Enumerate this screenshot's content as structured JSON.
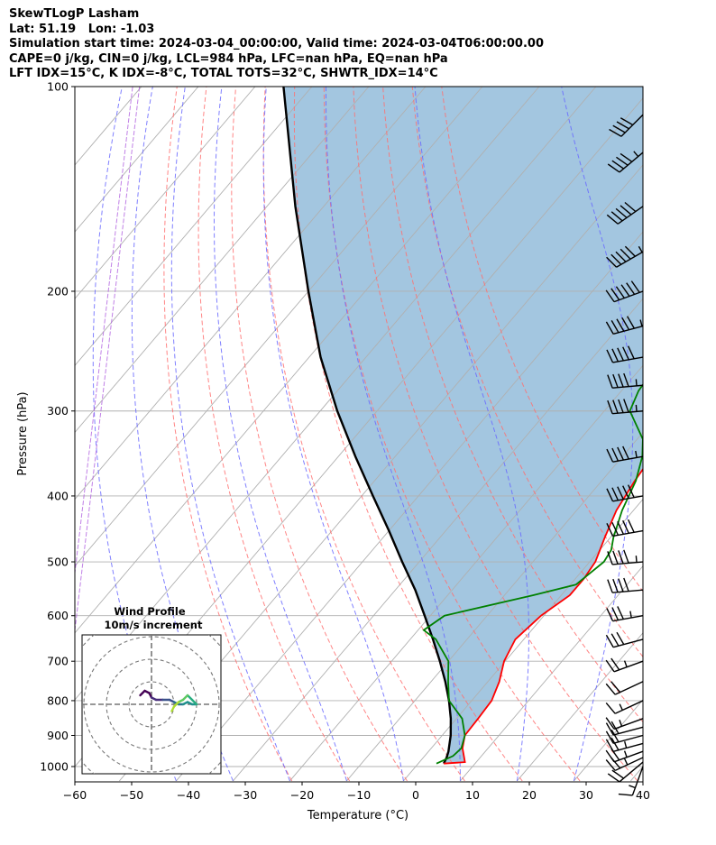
{
  "header": {
    "lines": [
      "SkewTLogP Lasham",
      "Lat: 51.19   Lon: -1.03",
      "Simulation start time: 2024-03-04_00:00:00, Valid time: 2024-03-04T06:00:00.00",
      "CAPE=0 j/kg, CIN=0 j/kg, LCL=984 hPa, LFC=nan hPa, EQ=nan hPa",
      "LFT IDX=15°C, K IDX=-8°C, TOTAL TOTS=32°C, SHWTR_IDX=14°C"
    ]
  },
  "chart_data": {
    "type": "skew-t",
    "xlabel": "Temperature (°C)",
    "ylabel": "Pressure (hPa)",
    "xlim": [
      -60,
      40
    ],
    "ylim": [
      1050,
      100
    ],
    "pressure_scale": "log",
    "xticks": [
      -60,
      -50,
      -40,
      -30,
      -20,
      -10,
      0,
      10,
      20,
      30,
      40
    ],
    "yticks": [
      1000,
      900,
      800,
      700,
      600,
      500,
      400,
      300,
      200,
      100
    ],
    "grid": true,
    "temperature": {
      "color": "#ff0000",
      "points": [
        [
          990,
          4.5
        ],
        [
          985,
          8
        ],
        [
          940,
          5.5
        ],
        [
          900,
          4
        ],
        [
          850,
          3.8
        ],
        [
          800,
          3.5
        ],
        [
          750,
          2
        ],
        [
          700,
          -0.2
        ],
        [
          650,
          -1.5
        ],
        [
          600,
          -0.5
        ],
        [
          560,
          1.5
        ],
        [
          530,
          1.5
        ],
        [
          500,
          1
        ],
        [
          460,
          -1
        ],
        [
          420,
          -3
        ],
        [
          380,
          -4.2
        ],
        [
          350,
          -4.8
        ],
        [
          330,
          -5.5
        ],
        [
          300,
          -7
        ],
        [
          270,
          -7.5
        ],
        [
          245,
          -7.5
        ],
        [
          222,
          -6.5
        ],
        [
          205,
          -5
        ],
        [
          185,
          -2
        ],
        [
          165,
          1
        ],
        [
          150,
          3
        ],
        [
          130,
          7
        ],
        [
          115,
          8.5
        ],
        [
          100,
          10
        ]
      ]
    },
    "dewpoint": {
      "color": "#008000",
      "points": [
        [
          990,
          3.2
        ],
        [
          965,
          5
        ],
        [
          940,
          5.3
        ],
        [
          900,
          4
        ],
        [
          850,
          1
        ],
        [
          800,
          -4
        ],
        [
          750,
          -7
        ],
        [
          700,
          -10
        ],
        [
          650,
          -15.5
        ],
        [
          630,
          -19
        ],
        [
          600,
          -17.5
        ],
        [
          560,
          -5
        ],
        [
          540,
          1
        ],
        [
          500,
          2.5
        ],
        [
          480,
          2
        ],
        [
          460,
          0.5
        ],
        [
          420,
          -2
        ],
        [
          380,
          -4
        ],
        [
          350,
          -6.5
        ],
        [
          330,
          -9
        ],
        [
          300,
          -15.5
        ],
        [
          280,
          -17
        ],
        [
          260,
          -17.5
        ],
        [
          240,
          -19
        ],
        [
          220,
          -21.5
        ],
        [
          205,
          -23
        ],
        [
          190,
          -24
        ],
        [
          170,
          -28
        ],
        [
          160,
          -30.5
        ],
        [
          150,
          -32.5
        ],
        [
          135,
          -33.5
        ],
        [
          115,
          -33
        ],
        [
          100,
          -32
        ]
      ]
    },
    "parcel": {
      "color": "#000000",
      "points": [
        [
          990,
          4.5
        ],
        [
          970,
          4.1
        ],
        [
          950,
          3.5
        ],
        [
          900,
          1.5
        ],
        [
          850,
          -1
        ],
        [
          800,
          -4
        ],
        [
          750,
          -7.5
        ],
        [
          700,
          -11.5
        ],
        [
          650,
          -16
        ],
        [
          600,
          -21
        ],
        [
          550,
          -26.5
        ],
        [
          500,
          -33
        ],
        [
          450,
          -40
        ],
        [
          400,
          -48
        ],
        [
          350,
          -57
        ],
        [
          300,
          -67
        ],
        [
          250,
          -78
        ],
        [
          200,
          -90
        ],
        [
          150,
          -105
        ],
        [
          100,
          -125
        ]
      ]
    },
    "cin_shading": {
      "color": "#a3c6e0",
      "between": [
        "temperature",
        "parcel"
      ]
    },
    "reference_lines": {
      "isotherms_color": "#b0b0b0",
      "dry_adiabats_color": "#ff7070",
      "moist_adiabats_color": "#6a6aff",
      "mixing_ratio_color": "#b060e0",
      "isotherm_temps": [
        -150,
        -140,
        -130,
        -120,
        -110,
        -100,
        -90,
        -80,
        -70,
        -60,
        -50,
        -40,
        -30,
        -20,
        -10,
        0,
        10,
        20,
        30,
        40
      ],
      "dry_adiabat_thetas": [
        250,
        260,
        270,
        280,
        290,
        300,
        310,
        320,
        330,
        340
      ],
      "moist_adiabat_starts": [
        -40,
        -30,
        -20,
        -10,
        0,
        10,
        20,
        30
      ],
      "mixing_ratio_curves": 2
    },
    "wind_barbs": {
      "pressures": [
        1000,
        985,
        970,
        950,
        925,
        900,
        875,
        850,
        800,
        750,
        700,
        650,
        600,
        550,
        500,
        450,
        400,
        350,
        300,
        275,
        250,
        225,
        200,
        175,
        150,
        125,
        110
      ],
      "speeds_kt": [
        15,
        20,
        25,
        25,
        25,
        20,
        20,
        15,
        15,
        20,
        25,
        30,
        35,
        40,
        45,
        50,
        50,
        45,
        45,
        45,
        50,
        55,
        60,
        55,
        50,
        45,
        40
      ],
      "dirs_deg": [
        200,
        230,
        245,
        250,
        255,
        255,
        255,
        250,
        245,
        245,
        250,
        255,
        260,
        265,
        265,
        260,
        260,
        260,
        265,
        265,
        260,
        255,
        250,
        240,
        235,
        230,
        225
      ]
    },
    "hodograph": {
      "title": "Wind Profile",
      "subtitle": "10m/s increment",
      "ring_increment_ms": 10,
      "points": [
        [
          -5,
          4
        ],
        [
          -3,
          6
        ],
        [
          -1,
          5
        ],
        [
          0,
          3
        ],
        [
          2,
          2
        ],
        [
          5,
          2
        ],
        [
          8,
          2
        ],
        [
          10,
          1
        ],
        [
          12,
          0
        ],
        [
          14,
          0
        ],
        [
          16,
          1
        ],
        [
          18,
          0
        ],
        [
          20,
          0
        ],
        [
          18,
          2
        ],
        [
          16,
          4
        ],
        [
          14,
          2
        ],
        [
          12,
          1
        ],
        [
          10,
          -1
        ],
        [
          9,
          -3
        ]
      ]
    }
  }
}
